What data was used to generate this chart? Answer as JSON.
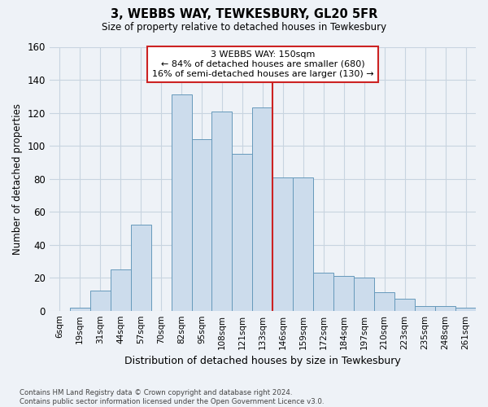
{
  "title": "3, WEBBS WAY, TEWKESBURY, GL20 5FR",
  "subtitle": "Size of property relative to detached houses in Tewkesbury",
  "xlabel": "Distribution of detached houses by size in Tewkesbury",
  "ylabel": "Number of detached properties",
  "categories": [
    "6sqm",
    "19sqm",
    "31sqm",
    "44sqm",
    "57sqm",
    "70sqm",
    "82sqm",
    "95sqm",
    "108sqm",
    "121sqm",
    "133sqm",
    "146sqm",
    "159sqm",
    "172sqm",
    "184sqm",
    "197sqm",
    "210sqm",
    "223sqm",
    "235sqm",
    "248sqm",
    "261sqm"
  ],
  "values": [
    0,
    2,
    12,
    25,
    52,
    0,
    131,
    104,
    121,
    95,
    123,
    81,
    81,
    23,
    21,
    20,
    11,
    7,
    3,
    3,
    2
  ],
  "bar_color": "#ccdcec",
  "bar_edge_color": "#6699bb",
  "vline_color": "#cc2222",
  "annotation_text": "3 WEBBS WAY: 150sqm\n← 84% of detached houses are smaller (680)\n16% of semi-detached houses are larger (130) →",
  "annotation_box_color": "#cc2222",
  "ylim": [
    0,
    160
  ],
  "yticks": [
    0,
    20,
    40,
    60,
    80,
    100,
    120,
    140,
    160
  ],
  "grid_color": "#c8d4e0",
  "bg_color": "#eef2f7",
  "footer": "Contains HM Land Registry data © Crown copyright and database right 2024.\nContains public sector information licensed under the Open Government Licence v3.0."
}
